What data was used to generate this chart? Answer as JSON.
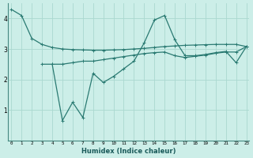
{
  "xlabel": "Humidex (Indice chaleur)",
  "background_color": "#cceee8",
  "line_color": "#2a7a72",
  "grid_color": "#aad8d0",
  "x": [
    0,
    1,
    2,
    3,
    4,
    5,
    6,
    7,
    8,
    9,
    10,
    11,
    12,
    13,
    14,
    15,
    16,
    17,
    18,
    19,
    20,
    21,
    22,
    23
  ],
  "line1": [
    4.3,
    4.1,
    3.35,
    3.15,
    3.05,
    3.0,
    2.98,
    2.97,
    2.96,
    2.96,
    2.97,
    2.98,
    3.0,
    3.02,
    3.05,
    3.08,
    3.1,
    3.12,
    3.13,
    3.14,
    3.15,
    3.15,
    3.15,
    3.08
  ],
  "line2_x": [
    3,
    4,
    5,
    6,
    7,
    8,
    9,
    10,
    11,
    12,
    13,
    14,
    15,
    16,
    17,
    18,
    19,
    20,
    21,
    22,
    23
  ],
  "line2_y": [
    2.5,
    2.5,
    0.65,
    1.25,
    0.75,
    2.2,
    1.9,
    2.1,
    2.35,
    2.6,
    3.2,
    3.95,
    4.1,
    3.3,
    2.78,
    2.78,
    2.82,
    2.88,
    2.92,
    2.55,
    3.08
  ],
  "line3_x": [
    4,
    5,
    6,
    7,
    8,
    9,
    10,
    11,
    12,
    13,
    14,
    15,
    16,
    17,
    18,
    19,
    20,
    21,
    22,
    23
  ],
  "line3_y": [
    2.5,
    2.5,
    2.55,
    2.6,
    2.6,
    2.65,
    2.7,
    2.75,
    2.8,
    2.85,
    2.88,
    2.9,
    2.78,
    2.72,
    2.76,
    2.8,
    2.86,
    2.9,
    2.9,
    3.08
  ],
  "ylim": [
    0,
    4.5
  ],
  "xlim": [
    -0.3,
    23.3
  ],
  "yticks": [
    1,
    2,
    3,
    4
  ],
  "xticks": [
    0,
    1,
    2,
    3,
    4,
    5,
    6,
    7,
    8,
    9,
    10,
    11,
    12,
    13,
    14,
    15,
    16,
    17,
    18,
    19,
    20,
    21,
    22,
    23
  ]
}
